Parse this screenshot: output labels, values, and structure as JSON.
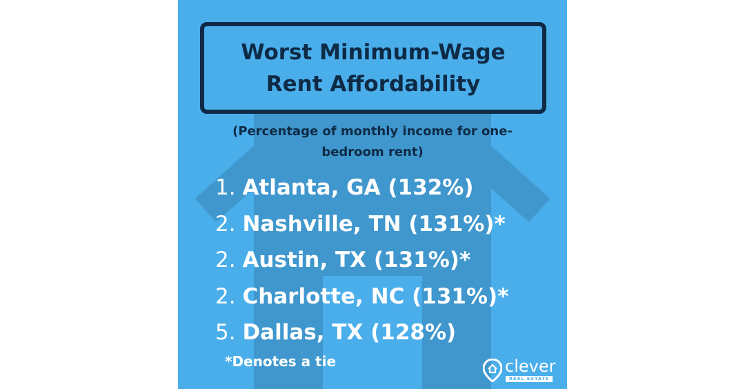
{
  "title": {
    "line1": "Worst Minimum-Wage",
    "line2": "Rent Affordability"
  },
  "subtitle": {
    "line1": "(Percentage of monthly income for one-",
    "line2": "bedroom rent)"
  },
  "rankings": [
    {
      "rank": "1.",
      "city": "Atlanta, GA (132%)"
    },
    {
      "rank": "2.",
      "city": "Nashville, TN (131%)*"
    },
    {
      "rank": "2.",
      "city": "Austin, TX (131%)*"
    },
    {
      "rank": "2.",
      "city": "Charlotte, NC (131%)*"
    },
    {
      "rank": "5.",
      "city": "Dallas, TX (128%)"
    }
  ],
  "footnote": "*Denotes a tie",
  "brand": {
    "name": "clever",
    "tagline": "REAL ESTATE",
    "icon": "location-pin-house-icon"
  },
  "colors": {
    "background": "#4aaeeb",
    "house_watermark": "#3f97cd",
    "title_text": "#0e2a45",
    "list_text": "#ffffff"
  }
}
